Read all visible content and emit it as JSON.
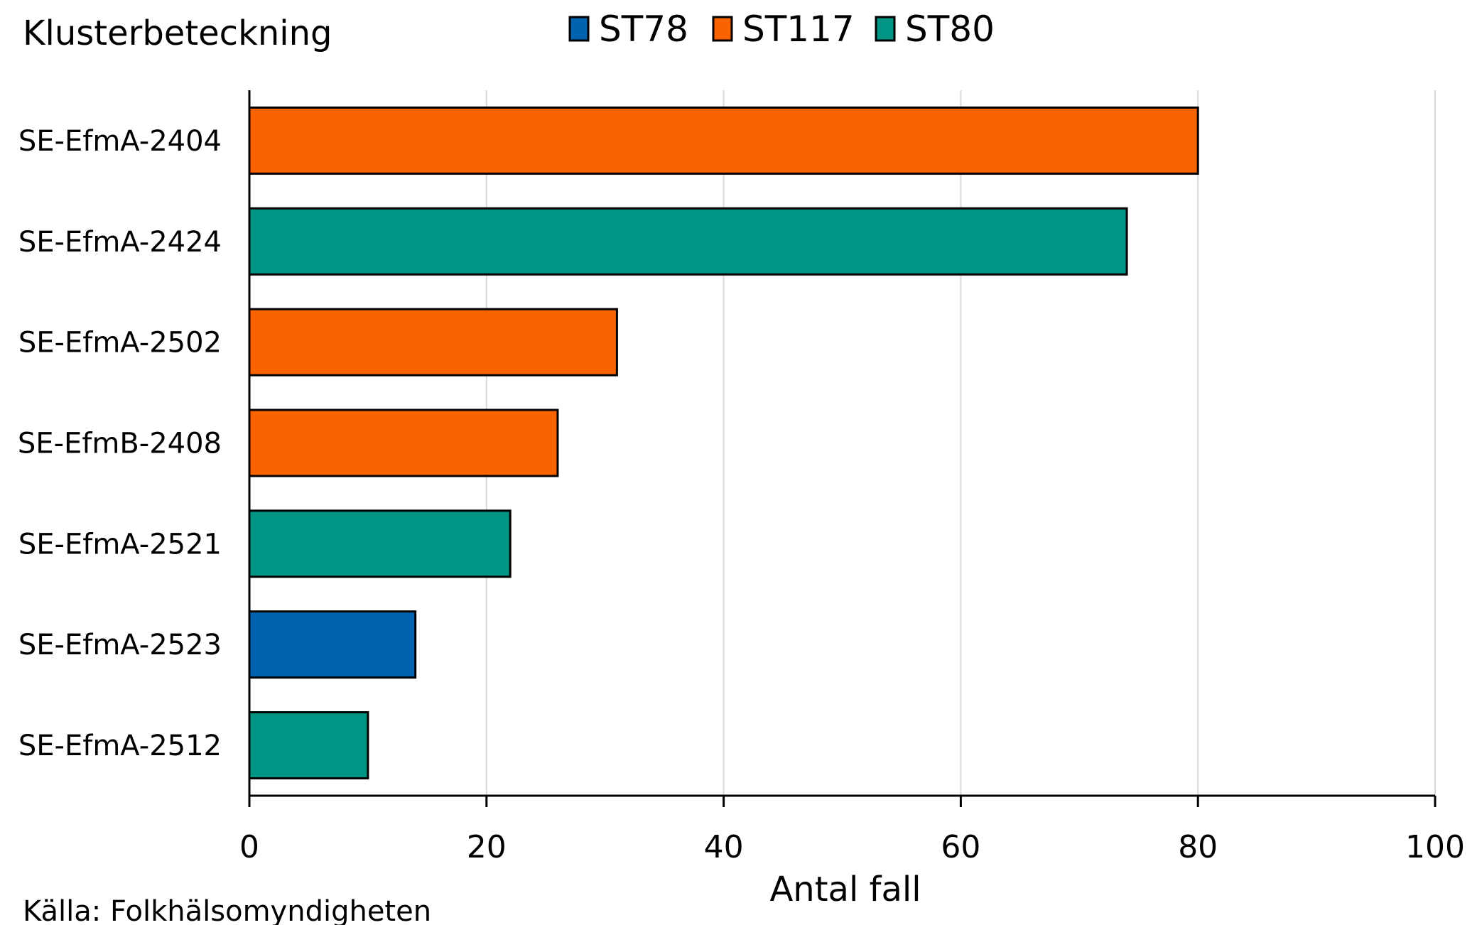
{
  "chart_data": {
    "type": "bar",
    "orientation": "horizontal",
    "y_axis_title": "Klusterbeteckning",
    "xlabel": "Antal fall",
    "xlim": [
      0,
      100
    ],
    "xticks": [
      0,
      20,
      40,
      60,
      80,
      100
    ],
    "grid": true,
    "legend_position": "top-center",
    "legend": [
      {
        "name": "ST78",
        "color": "#0063AF"
      },
      {
        "name": "ST117",
        "color": "#FA6400"
      },
      {
        "name": "ST80",
        "color": "#009485"
      }
    ],
    "bars": [
      {
        "category": "SE-EfmA-2404",
        "value": 80,
        "series": "ST117"
      },
      {
        "category": "SE-EfmA-2424",
        "value": 74,
        "series": "ST80"
      },
      {
        "category": "SE-EfmA-2502",
        "value": 31,
        "series": "ST117"
      },
      {
        "category": "SE-EfmB-2408",
        "value": 26,
        "series": "ST117"
      },
      {
        "category": "SE-EfmA-2521",
        "value": 22,
        "series": "ST80"
      },
      {
        "category": "SE-EfmA-2523",
        "value": 14,
        "series": "ST78"
      },
      {
        "category": "SE-EfmA-2512",
        "value": 10,
        "series": "ST80"
      }
    ]
  },
  "source": "Källa: Folkhälsomyndigheten",
  "colors": {
    "grid": "#D9D9D9",
    "axis": "#000000",
    "bar_outline": "#000000"
  }
}
